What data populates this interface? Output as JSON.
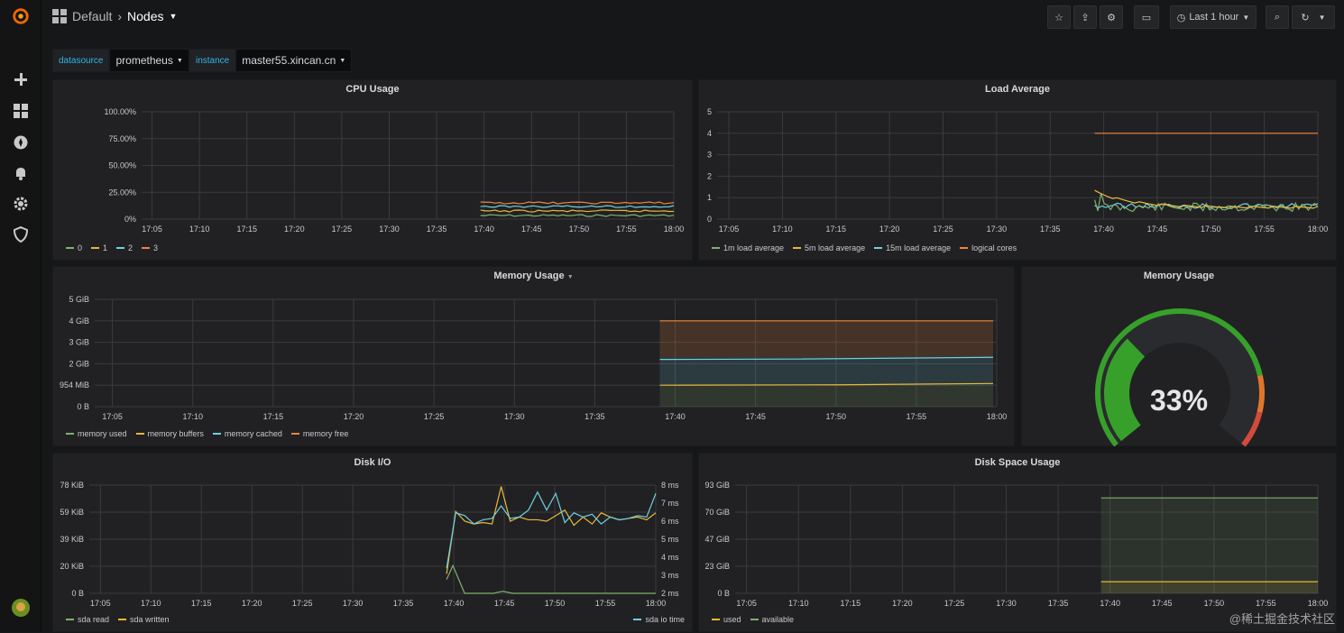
{
  "breadcrumb": {
    "folder": "Default",
    "separator": "›",
    "page": "Nodes"
  },
  "toolbar": {
    "time_range": "Last 1 hour"
  },
  "variables": [
    {
      "label": "datasource",
      "value": "prometheus"
    },
    {
      "label": "instance",
      "value": "master55.xincan.cn"
    }
  ],
  "x_ticks": [
    "17:05",
    "17:10",
    "17:15",
    "17:20",
    "17:25",
    "17:30",
    "17:35",
    "17:40",
    "17:45",
    "17:50",
    "17:55",
    "18:00"
  ],
  "panels": {
    "cpu": {
      "title": "CPU Usage",
      "y_ticks": [
        "100.00%",
        "75.00%",
        "50.00%",
        "25.00%",
        "0%"
      ],
      "legend": [
        {
          "name": "0",
          "color": "#7eb26d"
        },
        {
          "name": "1",
          "color": "#eab839"
        },
        {
          "name": "2",
          "color": "#6ed0e0"
        },
        {
          "name": "3",
          "color": "#ef843c"
        }
      ]
    },
    "load": {
      "title": "Load Average",
      "y_ticks": [
        "5",
        "4",
        "3",
        "2",
        "1",
        "0"
      ],
      "legend": [
        {
          "name": "1m load average",
          "color": "#7eb26d"
        },
        {
          "name": "5m load average",
          "color": "#eab839"
        },
        {
          "name": "15m load average",
          "color": "#6ed0e0"
        },
        {
          "name": "logical cores",
          "color": "#ef843c"
        }
      ]
    },
    "mem": {
      "title": "Memory Usage",
      "y_ticks": [
        "5 GiB",
        "4 GiB",
        "3 GiB",
        "2 GiB",
        "954 MiB",
        "0 B"
      ],
      "legend": [
        {
          "name": "memory used",
          "color": "#7eb26d"
        },
        {
          "name": "memory buffers",
          "color": "#eab839"
        },
        {
          "name": "memory cached",
          "color": "#6ed0e0"
        },
        {
          "name": "memory free",
          "color": "#ef843c"
        }
      ]
    },
    "gauge": {
      "title": "Memory Usage",
      "value": "33%",
      "fraction": 0.33,
      "colors": {
        "ok": "#37a02a",
        "warn": "#e0752d",
        "crit": "#d44a3a"
      }
    },
    "disk": {
      "title": "Disk I/O",
      "y_ticks": [
        "78 KiB",
        "59 KiB",
        "39 KiB",
        "20 KiB",
        "0 B"
      ],
      "y2_ticks": [
        "8 ms",
        "7 ms",
        "6 ms",
        "5 ms",
        "4 ms",
        "3 ms",
        "2 ms"
      ],
      "legend": [
        {
          "name": "sda read",
          "color": "#7eb26d"
        },
        {
          "name": "sda written",
          "color": "#eab839"
        }
      ],
      "legend_right": [
        {
          "name": "sda io time",
          "color": "#6ed0e0"
        }
      ]
    },
    "space": {
      "title": "Disk Space Usage",
      "y_ticks": [
        "93 GiB",
        "70 GiB",
        "47 GiB",
        "23 GiB",
        "0 B"
      ],
      "legend": [
        {
          "name": "used",
          "color": "#eab839"
        },
        {
          "name": "available",
          "color": "#7eb26d"
        }
      ]
    }
  },
  "watermark": "@稀土掘金技术社区"
}
